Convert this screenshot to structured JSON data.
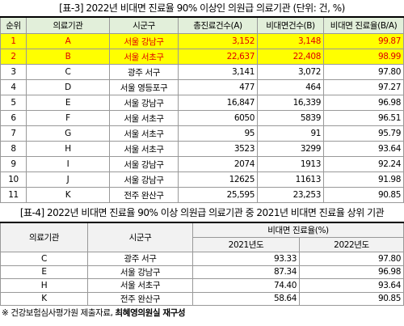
{
  "table1": {
    "title": "[표-3] 2022년 비대면 진료율 90% 이상인 의원급 의료기관 (단위: 건, %)",
    "headers": [
      "순위",
      "의료기관",
      "시군구",
      "총진료건수(A)",
      "비대면건수(B)",
      "비대면 진료율(B/A)"
    ],
    "rows": [
      [
        "1",
        "A",
        "서울 강남구",
        "3,152",
        "3,148",
        "99.87"
      ],
      [
        "2",
        "B",
        "서울 서초구",
        "22,637",
        "22,408",
        "98.99"
      ],
      [
        "3",
        "C",
        "광주 서구",
        "3,141",
        "3,072",
        "97.80"
      ],
      [
        "4",
        "D",
        "서울 영등포구",
        "477",
        "464",
        "97.27"
      ],
      [
        "5",
        "E",
        "서울 강남구",
        "16,847",
        "16,339",
        "96.98"
      ],
      [
        "6",
        "F",
        "서울 서초구",
        "6050",
        "5839",
        "96.51"
      ],
      [
        "7",
        "G",
        "서울 서초구",
        "95",
        "91",
        "95.79"
      ],
      [
        "8",
        "H",
        "서울 서초구",
        "3523",
        "3299",
        "93.64"
      ],
      [
        "9",
        "I",
        "서울 강남구",
        "2074",
        "1913",
        "92.24"
      ],
      [
        "10",
        "J",
        "서울 강남구",
        "12625",
        "11613",
        "91.98"
      ],
      [
        "11",
        "K",
        "전주 완산구",
        "25,595",
        "23,253",
        "90.85"
      ]
    ]
  },
  "table2": {
    "title": "[표-4] 2022년 비대면 진료율 90% 이상 의원급 의료기관 중 2021년 비대면 진료율 상위 기관",
    "headers": [
      "의료기관",
      "시군구",
      "비대면 진료율(%)"
    ],
    "subheaders": [
      "2021년도",
      "2022년도"
    ],
    "rows": [
      [
        "C",
        "광주 서구",
        "93.33",
        "97.80"
      ],
      [
        "E",
        "서울 강남구",
        "87.34",
        "96.98"
      ],
      [
        "H",
        "서울 서초구",
        "74.40",
        "93.64"
      ],
      [
        "K",
        "전주 완산구",
        "58.64",
        "90.85"
      ]
    ]
  },
  "footer": {
    "source": "※ 건강보험심사평가원 제출자료,",
    "credit": "최혜영의원실 재구성"
  }
}
